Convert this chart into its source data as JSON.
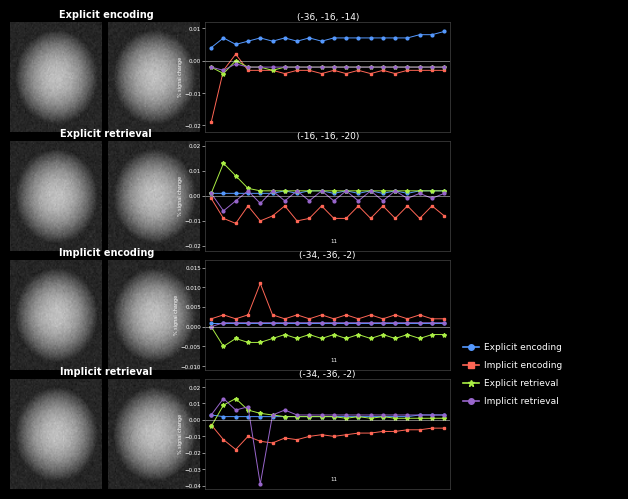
{
  "background_color": "#000000",
  "text_color": "#ffffff",
  "plots": [
    {
      "title": "(-36, -16, -14)",
      "row_label": "Explicit encoding",
      "ylim": [
        -0.022,
        0.012
      ],
      "yticks": [
        -0.02,
        -0.01,
        0,
        0.01
      ],
      "n_points": 20,
      "explicit_encoding": [
        0.004,
        0.007,
        0.005,
        0.006,
        0.007,
        0.006,
        0.007,
        0.006,
        0.007,
        0.006,
        0.007,
        0.007,
        0.007,
        0.007,
        0.007,
        0.007,
        0.007,
        0.008,
        0.008,
        0.009
      ],
      "implicit_encoding": [
        -0.019,
        -0.003,
        0.002,
        -0.003,
        -0.003,
        -0.003,
        -0.004,
        -0.003,
        -0.003,
        -0.004,
        -0.003,
        -0.004,
        -0.003,
        -0.004,
        -0.003,
        -0.004,
        -0.003,
        -0.003,
        -0.003,
        -0.003
      ],
      "explicit_retrieval": [
        -0.002,
        -0.004,
        0.0,
        -0.002,
        -0.002,
        -0.003,
        -0.002,
        -0.002,
        -0.002,
        -0.002,
        -0.002,
        -0.002,
        -0.002,
        -0.002,
        -0.002,
        -0.002,
        -0.002,
        -0.002,
        -0.002,
        -0.002
      ],
      "implicit_retrieval": [
        -0.002,
        -0.003,
        -0.001,
        -0.002,
        -0.002,
        -0.002,
        -0.002,
        -0.002,
        -0.002,
        -0.002,
        -0.002,
        -0.002,
        -0.002,
        -0.002,
        -0.002,
        -0.002,
        -0.002,
        -0.002,
        -0.002,
        -0.002
      ],
      "annotation": null
    },
    {
      "title": "(-16, -16, -20)",
      "row_label": "Explicit retrieval",
      "ylim": [
        -0.022,
        0.022
      ],
      "yticks": [
        -0.02,
        -0.01,
        0,
        0.01,
        0.02
      ],
      "n_points": 20,
      "explicit_encoding": [
        0.001,
        0.001,
        0.001,
        0.001,
        0.001,
        0.001,
        0.002,
        0.001,
        0.002,
        0.002,
        0.001,
        0.002,
        0.001,
        0.002,
        0.001,
        0.002,
        0.001,
        0.002,
        0.002,
        0.002
      ],
      "implicit_encoding": [
        -0.001,
        -0.009,
        -0.011,
        -0.004,
        -0.01,
        -0.008,
        -0.004,
        -0.01,
        -0.009,
        -0.004,
        -0.009,
        -0.009,
        -0.004,
        -0.009,
        -0.004,
        -0.009,
        -0.004,
        -0.009,
        -0.004,
        -0.008
      ],
      "explicit_retrieval": [
        0.001,
        0.013,
        0.008,
        0.003,
        0.002,
        0.002,
        0.002,
        0.002,
        0.002,
        0.002,
        0.002,
        0.002,
        0.002,
        0.002,
        0.002,
        0.002,
        0.002,
        0.002,
        0.002,
        0.002
      ],
      "implicit_retrieval": [
        0.001,
        -0.006,
        -0.002,
        0.002,
        -0.003,
        0.002,
        -0.002,
        0.002,
        -0.002,
        0.002,
        -0.002,
        0.002,
        -0.002,
        0.002,
        -0.002,
        0.002,
        -0.001,
        0.001,
        -0.001,
        0.001
      ],
      "annotation": "11"
    },
    {
      "title": "(-34, -36, -2)",
      "row_label": "Implicit encoding",
      "ylim": [
        -0.011,
        0.017
      ],
      "yticks": [
        -0.01,
        -0.005,
        0,
        0.005,
        0.01,
        0.015
      ],
      "n_points": 20,
      "explicit_encoding": [
        0.001,
        0.001,
        0.001,
        0.001,
        0.001,
        0.001,
        0.001,
        0.001,
        0.001,
        0.001,
        0.001,
        0.001,
        0.001,
        0.001,
        0.001,
        0.001,
        0.001,
        0.001,
        0.001,
        0.001
      ],
      "implicit_encoding": [
        0.002,
        0.003,
        0.002,
        0.003,
        0.011,
        0.003,
        0.002,
        0.003,
        0.002,
        0.003,
        0.002,
        0.003,
        0.002,
        0.003,
        0.002,
        0.003,
        0.002,
        0.003,
        0.002,
        0.002
      ],
      "explicit_retrieval": [
        0.0,
        -0.005,
        -0.003,
        -0.004,
        -0.004,
        -0.003,
        -0.002,
        -0.003,
        -0.002,
        -0.003,
        -0.002,
        -0.003,
        -0.002,
        -0.003,
        -0.002,
        -0.003,
        -0.002,
        -0.003,
        -0.002,
        -0.002
      ],
      "implicit_retrieval": [
        0.0,
        0.001,
        0.001,
        0.001,
        0.001,
        0.001,
        0.001,
        0.001,
        0.001,
        0.001,
        0.001,
        0.001,
        0.001,
        0.001,
        0.001,
        0.001,
        0.001,
        0.001,
        0.001,
        0.001
      ],
      "annotation": "11"
    },
    {
      "title": "(-34, -36, -2)",
      "row_label": "Implicit retrieval",
      "ylim": [
        -0.042,
        0.025
      ],
      "yticks": [
        -0.04,
        -0.03,
        -0.02,
        -0.01,
        0,
        0.01,
        0.02
      ],
      "n_points": 20,
      "explicit_encoding": [
        0.003,
        0.002,
        0.002,
        0.002,
        0.002,
        0.002,
        0.002,
        0.002,
        0.002,
        0.002,
        0.002,
        0.002,
        0.002,
        0.002,
        0.002,
        0.002,
        0.002,
        0.003,
        0.003,
        0.003
      ],
      "implicit_encoding": [
        -0.003,
        -0.012,
        -0.018,
        -0.01,
        -0.013,
        -0.014,
        -0.011,
        -0.012,
        -0.01,
        -0.009,
        -0.01,
        -0.009,
        -0.008,
        -0.008,
        -0.007,
        -0.007,
        -0.006,
        -0.006,
        -0.005,
        -0.005
      ],
      "explicit_retrieval": [
        -0.004,
        0.009,
        0.013,
        0.006,
        0.004,
        0.003,
        0.002,
        0.002,
        0.002,
        0.002,
        0.002,
        0.001,
        0.002,
        0.001,
        0.002,
        0.001,
        0.001,
        0.001,
        0.001,
        0.001
      ],
      "implicit_retrieval": [
        0.003,
        0.013,
        0.006,
        0.008,
        -0.039,
        0.003,
        0.006,
        0.003,
        0.003,
        0.003,
        0.003,
        0.003,
        0.003,
        0.003,
        0.003,
        0.003,
        0.003,
        0.003,
        0.003,
        0.003
      ],
      "annotation": "11"
    }
  ],
  "legend": {
    "labels": [
      "Explicit encoding",
      "Implicit encoding",
      "Explicit retrieval",
      "Implicit retrieval"
    ],
    "colors": [
      "#5599ff",
      "#ff6655",
      "#aaee44",
      "#9966cc"
    ],
    "markers": [
      "o",
      "s",
      "*",
      "o"
    ]
  },
  "line_colors": {
    "explicit_encoding": "#5599ff",
    "implicit_encoding": "#ff6655",
    "explicit_retrieval": "#aaee44",
    "implicit_retrieval": "#9966cc"
  },
  "row_labels": [
    "Explicit encoding",
    "Explicit retrieval",
    "Implicit encoding",
    "Implicit retrieval"
  ]
}
